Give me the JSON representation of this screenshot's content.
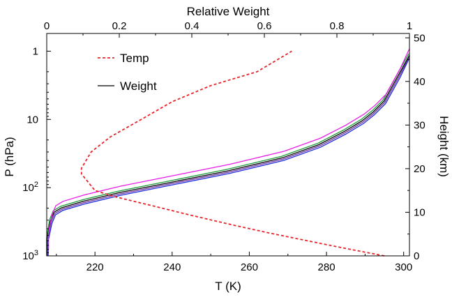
{
  "chart_data": {
    "type": "line",
    "top_axis": {
      "label": "Relative Weight",
      "range": [
        0,
        1
      ],
      "ticks": [
        "0",
        "0.2",
        "0.4",
        "0.6",
        "0.8",
        "1"
      ]
    },
    "bottom_axis": {
      "label": "T (K)",
      "range": [
        207.5,
        301.5
      ],
      "ticks": [
        "220",
        "240",
        "260",
        "280",
        "300"
      ]
    },
    "left_axis": {
      "label": "P (hPa)",
      "scale": "log",
      "range_hPa": [
        1000,
        0.55
      ],
      "ticks": [
        {
          "base": "1",
          "exp": ""
        },
        {
          "base": "10",
          "exp": ""
        },
        {
          "base": "10",
          "exp": "2"
        },
        {
          "base": "10",
          "exp": "3"
        }
      ]
    },
    "right_axis": {
      "label": "Height (km)",
      "range": [
        0,
        51
      ],
      "ticks": [
        "0",
        "10",
        "20",
        "30",
        "40",
        "50"
      ]
    },
    "legend": {
      "position": "top-left",
      "entries": [
        {
          "label": "Temp",
          "color": "#e8242a",
          "style": "dashed"
        },
        {
          "label": "Weight",
          "color": "#000000",
          "style": "solid"
        }
      ]
    },
    "temp_profile": {
      "name": "Temp",
      "color": "#e8242a",
      "t_K": [
        295,
        285,
        275,
        265,
        255,
        245,
        235,
        225,
        220,
        216.5,
        216.5,
        219,
        224,
        232,
        240,
        250,
        262,
        271
      ],
      "p_hPa": [
        1000,
        780,
        600,
        460,
        345,
        255,
        185,
        135,
        110,
        63,
        52,
        30,
        18,
        10,
        5.5,
        3.2,
        2,
        1
      ]
    },
    "weight_functions": {
      "x_relative_weight": [
        0.0,
        0.0,
        0.01,
        0.02,
        0.04,
        0.1,
        0.2,
        0.35,
        0.5,
        0.65,
        0.75,
        0.82,
        0.87,
        0.9,
        0.93,
        0.95,
        0.97,
        1.0
      ],
      "height_km": [
        0,
        4,
        8,
        10,
        11,
        12.5,
        14.5,
        17,
        19.5,
        22.5,
        25.5,
        28.5,
        31,
        33,
        35.5,
        38.5,
        41.5,
        46
      ],
      "series": [
        {
          "name": "",
          "color": "#000000",
          "dh": 0.0,
          "dx": 0.0
        },
        {
          "name": "",
          "color": "#1f2bd8",
          "dh": -0.6,
          "dx": 0.004
        },
        {
          "name": "",
          "color": "#1a9a3a",
          "dh": 0.35,
          "dx": -0.002
        },
        {
          "name": "",
          "color": "#6a2ea0",
          "dh": -0.3,
          "dx": 0.002
        },
        {
          "name": "",
          "color": "#e81ee8",
          "dh": 1.5,
          "dx": 0.005
        }
      ]
    }
  }
}
